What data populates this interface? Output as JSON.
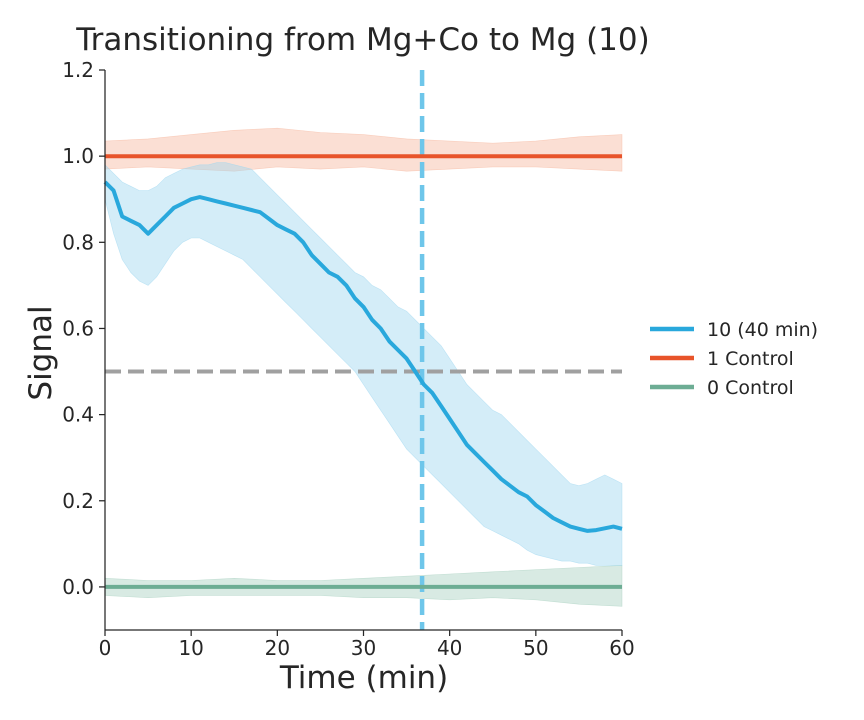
{
  "chart_data": {
    "type": "line",
    "title": "Transitioning from Mg+Co to Mg (10)",
    "xlabel": "Time (min)",
    "ylabel": "Signal",
    "xlim": [
      0,
      60
    ],
    "ylim": [
      -0.1,
      1.2
    ],
    "xticks": [
      "0",
      "10",
      "20",
      "30",
      "40",
      "50",
      "60"
    ],
    "yticks": [
      "0.0",
      "0.2",
      "0.4",
      "0.6",
      "0.8",
      "1.0",
      "1.2"
    ],
    "grid": false,
    "legend_position": "right",
    "reference_lines": [
      {
        "orientation": "horizontal",
        "value": 0.5,
        "color": "#a0a0a0",
        "style": "dashed"
      },
      {
        "orientation": "vertical",
        "value": 36.8,
        "color": "#6ec6ea",
        "style": "dashed"
      }
    ],
    "series": [
      {
        "name": "10 (40 min)",
        "color": "#29a8dc",
        "band_color": "#9fd7f0",
        "x": [
          0,
          1,
          2,
          3,
          4,
          5,
          6,
          7,
          8,
          9,
          10,
          11,
          12,
          13,
          14,
          15,
          16,
          17,
          18,
          19,
          20,
          21,
          22,
          23,
          24,
          25,
          26,
          27,
          28,
          29,
          30,
          31,
          32,
          33,
          34,
          35,
          36,
          37,
          38,
          39,
          40,
          41,
          42,
          43,
          44,
          45,
          46,
          47,
          48,
          49,
          50,
          51,
          52,
          53,
          54,
          55,
          56,
          57,
          58,
          59,
          60
        ],
        "y": [
          0.94,
          0.92,
          0.86,
          0.85,
          0.84,
          0.82,
          0.84,
          0.86,
          0.88,
          0.89,
          0.9,
          0.905,
          0.9,
          0.895,
          0.89,
          0.885,
          0.88,
          0.875,
          0.87,
          0.855,
          0.84,
          0.83,
          0.82,
          0.8,
          0.77,
          0.75,
          0.73,
          0.72,
          0.7,
          0.67,
          0.65,
          0.62,
          0.6,
          0.57,
          0.55,
          0.53,
          0.5,
          0.47,
          0.45,
          0.42,
          0.39,
          0.36,
          0.33,
          0.31,
          0.29,
          0.27,
          0.25,
          0.235,
          0.22,
          0.21,
          0.19,
          0.175,
          0.16,
          0.15,
          0.14,
          0.135,
          0.13,
          0.132,
          0.136,
          0.14,
          0.135
        ],
        "lower": [
          0.9,
          0.82,
          0.76,
          0.73,
          0.71,
          0.7,
          0.72,
          0.75,
          0.78,
          0.8,
          0.81,
          0.81,
          0.8,
          0.79,
          0.78,
          0.77,
          0.76,
          0.74,
          0.72,
          0.7,
          0.68,
          0.66,
          0.64,
          0.62,
          0.6,
          0.58,
          0.56,
          0.54,
          0.52,
          0.5,
          0.47,
          0.44,
          0.41,
          0.38,
          0.35,
          0.32,
          0.3,
          0.28,
          0.26,
          0.24,
          0.22,
          0.2,
          0.18,
          0.16,
          0.14,
          0.13,
          0.12,
          0.11,
          0.1,
          0.085,
          0.075,
          0.07,
          0.065,
          0.06,
          0.06,
          0.055,
          0.055,
          0.05,
          0.05,
          0.05,
          0.05
        ],
        "upper": [
          0.98,
          0.96,
          0.94,
          0.93,
          0.92,
          0.92,
          0.93,
          0.95,
          0.96,
          0.97,
          0.975,
          0.98,
          0.98,
          0.985,
          0.985,
          0.98,
          0.975,
          0.97,
          0.95,
          0.93,
          0.91,
          0.89,
          0.87,
          0.85,
          0.83,
          0.81,
          0.79,
          0.77,
          0.75,
          0.73,
          0.72,
          0.7,
          0.69,
          0.67,
          0.65,
          0.64,
          0.62,
          0.6,
          0.58,
          0.56,
          0.53,
          0.5,
          0.47,
          0.45,
          0.43,
          0.41,
          0.4,
          0.38,
          0.36,
          0.34,
          0.32,
          0.3,
          0.28,
          0.26,
          0.24,
          0.235,
          0.24,
          0.25,
          0.26,
          0.25,
          0.24
        ]
      },
      {
        "name": "1 Control",
        "color": "#e8542a",
        "band_color": "#f7b79f",
        "x": [
          0,
          5,
          10,
          15,
          20,
          25,
          30,
          35,
          40,
          45,
          50,
          55,
          60
        ],
        "y": [
          1.0,
          1.0,
          1.0,
          1.0,
          1.0,
          1.0,
          1.0,
          1.0,
          1.0,
          1.0,
          1.0,
          1.0,
          1.0
        ],
        "lower": [
          0.97,
          0.975,
          0.97,
          0.965,
          0.975,
          0.97,
          0.975,
          0.965,
          0.97,
          0.975,
          0.975,
          0.97,
          0.965
        ],
        "upper": [
          1.035,
          1.04,
          1.05,
          1.06,
          1.065,
          1.055,
          1.05,
          1.04,
          1.035,
          1.03,
          1.035,
          1.045,
          1.05
        ]
      },
      {
        "name": "0 Control",
        "color": "#6dad94",
        "band_color": "#a9d1c0",
        "x": [
          0,
          5,
          10,
          15,
          20,
          25,
          30,
          35,
          40,
          45,
          50,
          55,
          60
        ],
        "y": [
          0.0,
          0.0,
          0.0,
          0.0,
          0.0,
          0.0,
          0.0,
          0.0,
          0.0,
          0.0,
          0.0,
          0.0,
          0.0
        ],
        "lower": [
          -0.02,
          -0.025,
          -0.02,
          -0.02,
          -0.02,
          -0.02,
          -0.025,
          -0.025,
          -0.03,
          -0.025,
          -0.03,
          -0.04,
          -0.045
        ],
        "upper": [
          0.02,
          0.015,
          0.015,
          0.02,
          0.015,
          0.015,
          0.02,
          0.025,
          0.03,
          0.035,
          0.04,
          0.045,
          0.05
        ]
      }
    ]
  }
}
